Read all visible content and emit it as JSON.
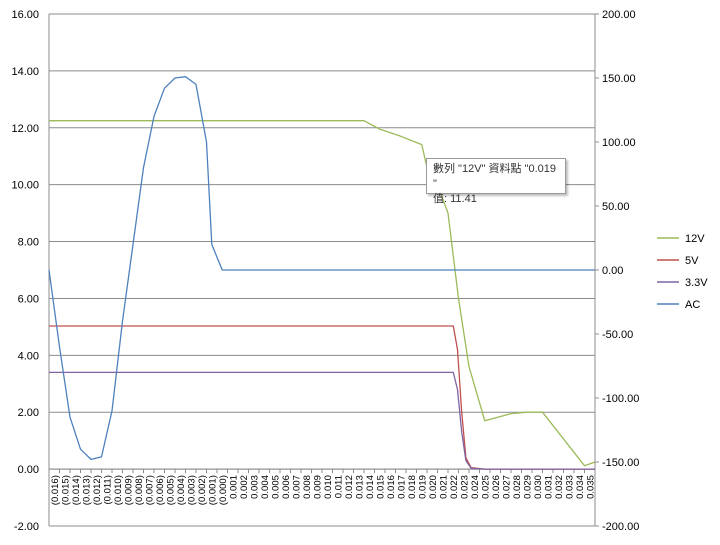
{
  "chart_data": {
    "type": "line",
    "title": "",
    "xlabel": "",
    "ylabel": "",
    "y_left": {
      "ylim": [
        -2,
        16
      ],
      "ticks": [
        "-2.00",
        "0.00",
        "2.00",
        "4.00",
        "6.00",
        "8.00",
        "10.00",
        "12.00",
        "14.00",
        "16.00"
      ]
    },
    "y_right": {
      "ylim": [
        -200,
        200
      ],
      "ticks": [
        "-200.00",
        "-150.00",
        "-100.00",
        "-50.00",
        "0.00",
        "50.00",
        "100.00",
        "150.00",
        "200.00"
      ]
    },
    "x_tick_labels": [
      "(0.016)",
      "(0.015)",
      "(0.014)",
      "(0.013)",
      "(0.012)",
      "(0.011)",
      "(0.010)",
      "(0.009)",
      "(0.008)",
      "(0.007)",
      "(0.006)",
      "(0.005)",
      "(0.004)",
      "(0.003)",
      "(0.002)",
      "(0.001)",
      "(0.000)",
      "0.001",
      "0.002",
      "0.003",
      "0.004",
      "0.005",
      "0.006",
      "0.007",
      "0.008",
      "0.009",
      "0.010",
      "0.011",
      "0.012",
      "0.013",
      "0.014",
      "0.015",
      "0.016",
      "0.017",
      "0.018",
      "0.019",
      "0.020",
      "0.021",
      "0.022",
      "0.023",
      "0.024",
      "0.025",
      "0.026",
      "0.027",
      "0.028",
      "0.029",
      "0.030",
      "0.031",
      "0.032",
      "0.033",
      "0.034",
      "0.035"
    ],
    "x_range": [
      -0.0165,
      0.0355
    ],
    "grid": true,
    "legend_position": "right",
    "series": [
      {
        "name": "12V",
        "color": "#9bbb59",
        "axis": "left",
        "points": [
          [
            -0.0165,
            12.25
          ],
          [
            0.0135,
            12.25
          ],
          [
            0.015,
            11.95
          ],
          [
            0.017,
            11.7
          ],
          [
            0.019,
            11.41
          ],
          [
            0.0195,
            10.6
          ],
          [
            0.0205,
            10.0
          ],
          [
            0.0215,
            9.0
          ],
          [
            0.0225,
            6.0
          ],
          [
            0.0235,
            3.6
          ],
          [
            0.025,
            1.7
          ],
          [
            0.0275,
            1.95
          ],
          [
            0.029,
            2.0
          ],
          [
            0.0305,
            2.0
          ],
          [
            0.0345,
            0.12
          ],
          [
            0.0355,
            0.25
          ]
        ]
      },
      {
        "name": "5V",
        "color": "#c0504d",
        "axis": "left",
        "points": [
          [
            -0.0165,
            5.03
          ],
          [
            0.022,
            5.03
          ],
          [
            0.0224,
            4.2
          ],
          [
            0.0228,
            2.0
          ],
          [
            0.0232,
            0.4
          ],
          [
            0.0237,
            0.05
          ],
          [
            0.025,
            0.0
          ],
          [
            0.03,
            0.0
          ],
          [
            0.0355,
            0.0
          ]
        ]
      },
      {
        "name": "3.3V",
        "color": "#8064a2",
        "axis": "left",
        "points": [
          [
            -0.0165,
            3.4
          ],
          [
            0.022,
            3.4
          ],
          [
            0.0224,
            2.8
          ],
          [
            0.0228,
            1.3
          ],
          [
            0.0232,
            0.3
          ],
          [
            0.0237,
            0.03
          ],
          [
            0.025,
            0.0
          ],
          [
            0.0355,
            0.0
          ]
        ]
      },
      {
        "name": "AC",
        "color": "#4f81bd",
        "axis": "right",
        "points": [
          [
            -0.0165,
            0
          ],
          [
            -0.0155,
            -60
          ],
          [
            -0.0145,
            -115
          ],
          [
            -0.0135,
            -140
          ],
          [
            -0.0125,
            -148
          ],
          [
            -0.0115,
            -146
          ],
          [
            -0.0105,
            -110
          ],
          [
            -0.0095,
            -40
          ],
          [
            -0.0085,
            20
          ],
          [
            -0.0075,
            80
          ],
          [
            -0.0065,
            120
          ],
          [
            -0.0055,
            142
          ],
          [
            -0.0045,
            150
          ],
          [
            -0.0035,
            151
          ],
          [
            -0.0025,
            145
          ],
          [
            -0.0015,
            100
          ],
          [
            -0.001,
            20
          ],
          [
            -0.0005,
            10
          ],
          [
            0.0,
            0
          ],
          [
            0.005,
            0
          ],
          [
            0.015,
            0
          ],
          [
            0.025,
            0
          ],
          [
            0.0355,
            0
          ]
        ]
      }
    ],
    "tooltip": {
      "line1": "數列 \"12V\" 資料點 \"0.019 \"",
      "line2": "值: 11.41"
    }
  }
}
